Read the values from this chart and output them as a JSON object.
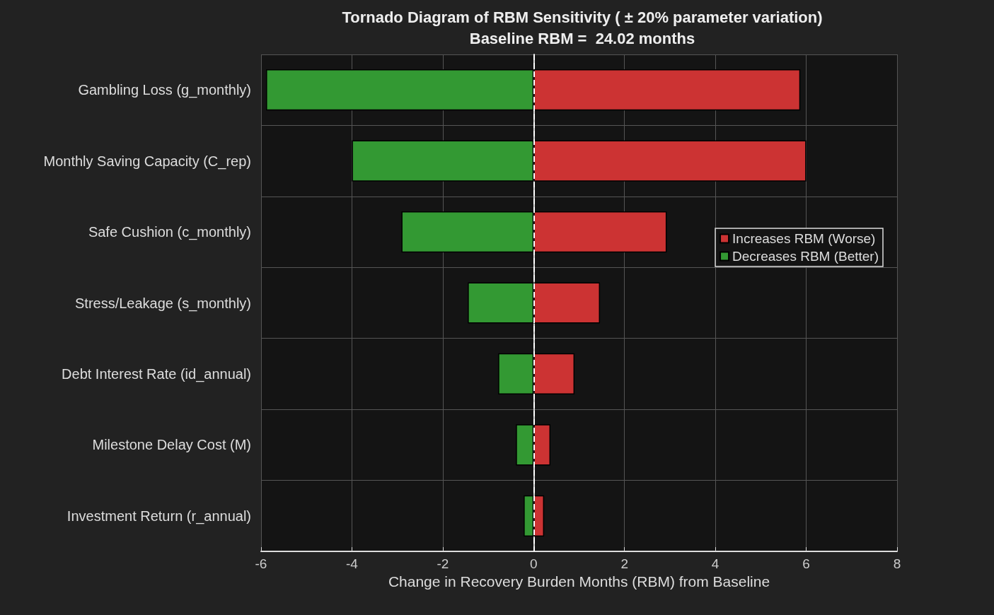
{
  "chart_data": {
    "type": "bar",
    "orientation": "horizontal",
    "stacked": true,
    "title": "Tornado Diagram of RBM Sensitivity ( ± 20% parameter variation)",
    "subtitle": "Baseline RBM =  24.02 months",
    "xlabel": "Change in Recovery Burden Months (RBM) from Baseline",
    "categories": [
      "Gambling Loss (g_monthly)",
      "Monthly Saving Capacity (C_rep)",
      "Safe Cushion (c_monthly)",
      "Stress/Leakage (s_monthly)",
      "Debt Interest Rate (id_annual)",
      "Milestone Delay Cost (M)",
      "Investment Return (r_annual)"
    ],
    "series": [
      {
        "name": "Increases RBM (Worse)",
        "color": "#cc3333",
        "values": [
          5.87,
          6.0,
          2.93,
          1.46,
          0.9,
          0.37,
          0.23
        ]
      },
      {
        "name": "Decreases RBM (Better)",
        "color": "#339933",
        "values": [
          -5.89,
          -4.0,
          -2.91,
          -1.45,
          -0.78,
          -0.39,
          -0.22
        ]
      }
    ],
    "xlim": [
      -6,
      8
    ],
    "xticks": [
      -6,
      -4,
      -2,
      0,
      2,
      4,
      6,
      8
    ],
    "ref_lines": [
      {
        "axis": "x",
        "value": 0,
        "color": "#ffffff",
        "line_style": "dashed"
      }
    ],
    "grid": true,
    "legend": "right"
  }
}
